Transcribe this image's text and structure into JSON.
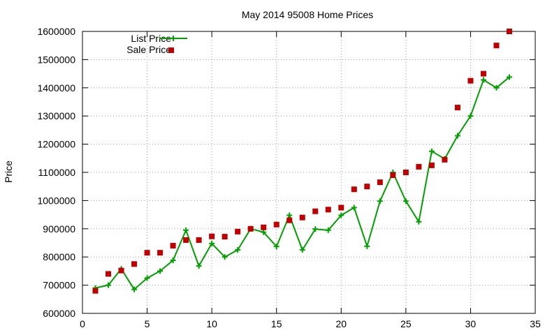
{
  "chart_data": {
    "type": "line",
    "title": "May 2014 95008 Home Prices",
    "xlabel": "",
    "ylabel": "Price",
    "xlim": [
      0,
      35
    ],
    "ylim": [
      600000,
      1600000
    ],
    "xticks": [
      0,
      5,
      10,
      15,
      20,
      25,
      30,
      35
    ],
    "xtick_labels": [
      "0",
      "5",
      "10",
      "15",
      "20",
      "25",
      "30",
      "35"
    ],
    "yticks": [
      600000,
      700000,
      800000,
      900000,
      1000000,
      1100000,
      1200000,
      1300000,
      1400000,
      1500000,
      1600000
    ],
    "ytick_labels": [
      "600000",
      "700000",
      "800000",
      "900000",
      "1000000",
      "1100000",
      "1200000",
      "1300000",
      "1400000",
      "1500000",
      "1600000"
    ],
    "grid": true,
    "legend_position": "top-left",
    "x": [
      1,
      2,
      3,
      4,
      5,
      6,
      7,
      8,
      9,
      10,
      11,
      12,
      13,
      14,
      15,
      16,
      17,
      18,
      19,
      20,
      21,
      22,
      23,
      24,
      25,
      26,
      27,
      28,
      29,
      30,
      31,
      32,
      33
    ],
    "series": [
      {
        "name": "List Price",
        "style": "line-plus",
        "color": "#00a000",
        "values": [
          690000,
          700000,
          758000,
          685000,
          725000,
          750000,
          788000,
          895000,
          768000,
          848000,
          800000,
          825000,
          900000,
          888000,
          837000,
          948000,
          825000,
          899000,
          895000,
          948000,
          975000,
          838000,
          998000,
          1100000,
          998000,
          925000,
          1175000,
          1148000,
          1230000,
          1300000,
          1428000,
          1400000,
          1438000
        ]
      },
      {
        "name": "Sale Price",
        "style": "square",
        "color": "#c00000",
        "values": [
          680000,
          740000,
          752000,
          775000,
          815000,
          815000,
          840000,
          860000,
          860000,
          873000,
          872000,
          890000,
          900000,
          905000,
          915000,
          930000,
          940000,
          962000,
          968000,
          975000,
          1040000,
          1050000,
          1065000,
          1090000,
          1100000,
          1120000,
          1125000,
          1145000,
          1330000,
          1425000,
          1450000,
          1550000,
          1600000
        ]
      }
    ]
  },
  "legend": {
    "list_price": "List Price",
    "sale_price": "Sale Price"
  },
  "colors": {
    "list_price": "#00a000",
    "sale_price": "#c00000",
    "axis": "#000000",
    "grid": "#999999"
  }
}
